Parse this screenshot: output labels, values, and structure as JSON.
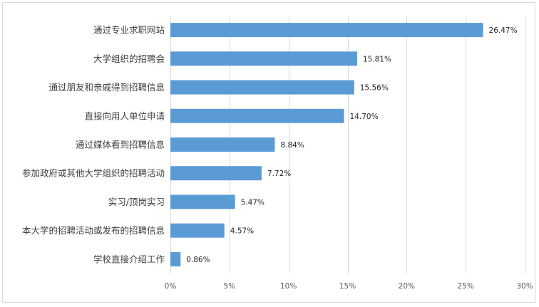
{
  "chart_data": {
    "type": "bar",
    "orientation": "horizontal",
    "categories": [
      "通过专业求职网站",
      "大学组织的招聘会",
      "通过朋友和亲戚得到招聘信息",
      "直接向用人单位申请",
      "通过媒体看到招聘信息",
      "参加政府或其他大学组织的招聘活动",
      "实习/顶岗实习",
      "本大学的招聘活动或发布的招聘信息",
      "学校直接介绍工作"
    ],
    "values": [
      26.47,
      15.81,
      15.56,
      14.7,
      8.84,
      7.72,
      5.47,
      4.57,
      0.86
    ],
    "value_labels": [
      "26.47%",
      "15.81%",
      "15.56%",
      "14.70%",
      "8.84%",
      "7.72%",
      "5.47%",
      "4.57%",
      "0.86%"
    ],
    "x_ticks": [
      0,
      5,
      10,
      15,
      20,
      25,
      30
    ],
    "x_tick_labels": [
      "0%",
      "5%",
      "10%",
      "15%",
      "20%",
      "25%",
      "30%"
    ],
    "xlim": [
      0,
      30
    ],
    "grid": true,
    "legend": "none",
    "title": "",
    "xlabel": "",
    "ylabel": "",
    "bar_color": "#5b9bd5",
    "grid_color": "#d9d9d9"
  }
}
